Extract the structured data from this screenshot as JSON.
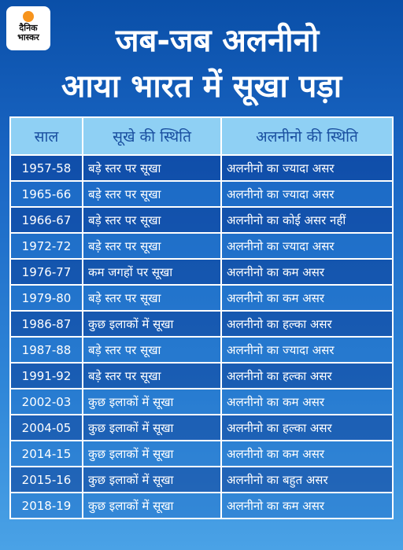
{
  "logo": "दैनिक भास्कर",
  "header": {
    "title_line1": "जब-जब अलनीनो",
    "title_line2": "आया भारत में सूखा पड़ा"
  },
  "table": {
    "columns": [
      "साल",
      "सूखे की स्थिति",
      "अलनीनो की स्थिति"
    ],
    "rows": [
      [
        "1957-58",
        "बड़े स्तर पर सूखा",
        "अलनीनो का ज्यादा असर"
      ],
      [
        "1965-66",
        "बड़े स्तर पर सूखा",
        "अलनीनो का ज्यादा असर"
      ],
      [
        "1966-67",
        "बड़े स्तर पर सूखा",
        "अलनीनो का कोई असर नहीं"
      ],
      [
        "1972-72",
        "बड़े स्तर पर सूखा",
        "अलनीनो का ज्यादा असर"
      ],
      [
        "1976-77",
        "कम जगहों पर सूखा",
        "अलनीनो का कम असर"
      ],
      [
        "1979-80",
        "बड़े स्तर पर सूखा",
        "अलनीनो का कम असर"
      ],
      [
        "1986-87",
        "कुछ इलाकों में सूखा",
        "अलनीनो का हल्का असर"
      ],
      [
        "1987-88",
        "बड़े स्तर पर सूखा",
        "अलनीनो का ज्यादा असर"
      ],
      [
        "1991-92",
        "बड़े स्तर पर सूखा",
        "अलनीनो का हल्का असर"
      ],
      [
        "2002-03",
        "कुछ इलाकों में सूखा",
        "अलनीनो का कम असर"
      ],
      [
        "2004-05",
        "कुछ इलाकों में सूखा",
        "अलनीनो का हल्का असर"
      ],
      [
        "2014-15",
        "कुछ इलाकों में सूखा",
        "अलनीनो का कम असर"
      ],
      [
        "2015-16",
        "कुछ इलाकों में सूखा",
        "अलनीनो का बहुत असर"
      ],
      [
        "2018-19",
        "कुछ इलाकों में सूखा",
        "अलनीनो का कम असर"
      ]
    ]
  }
}
